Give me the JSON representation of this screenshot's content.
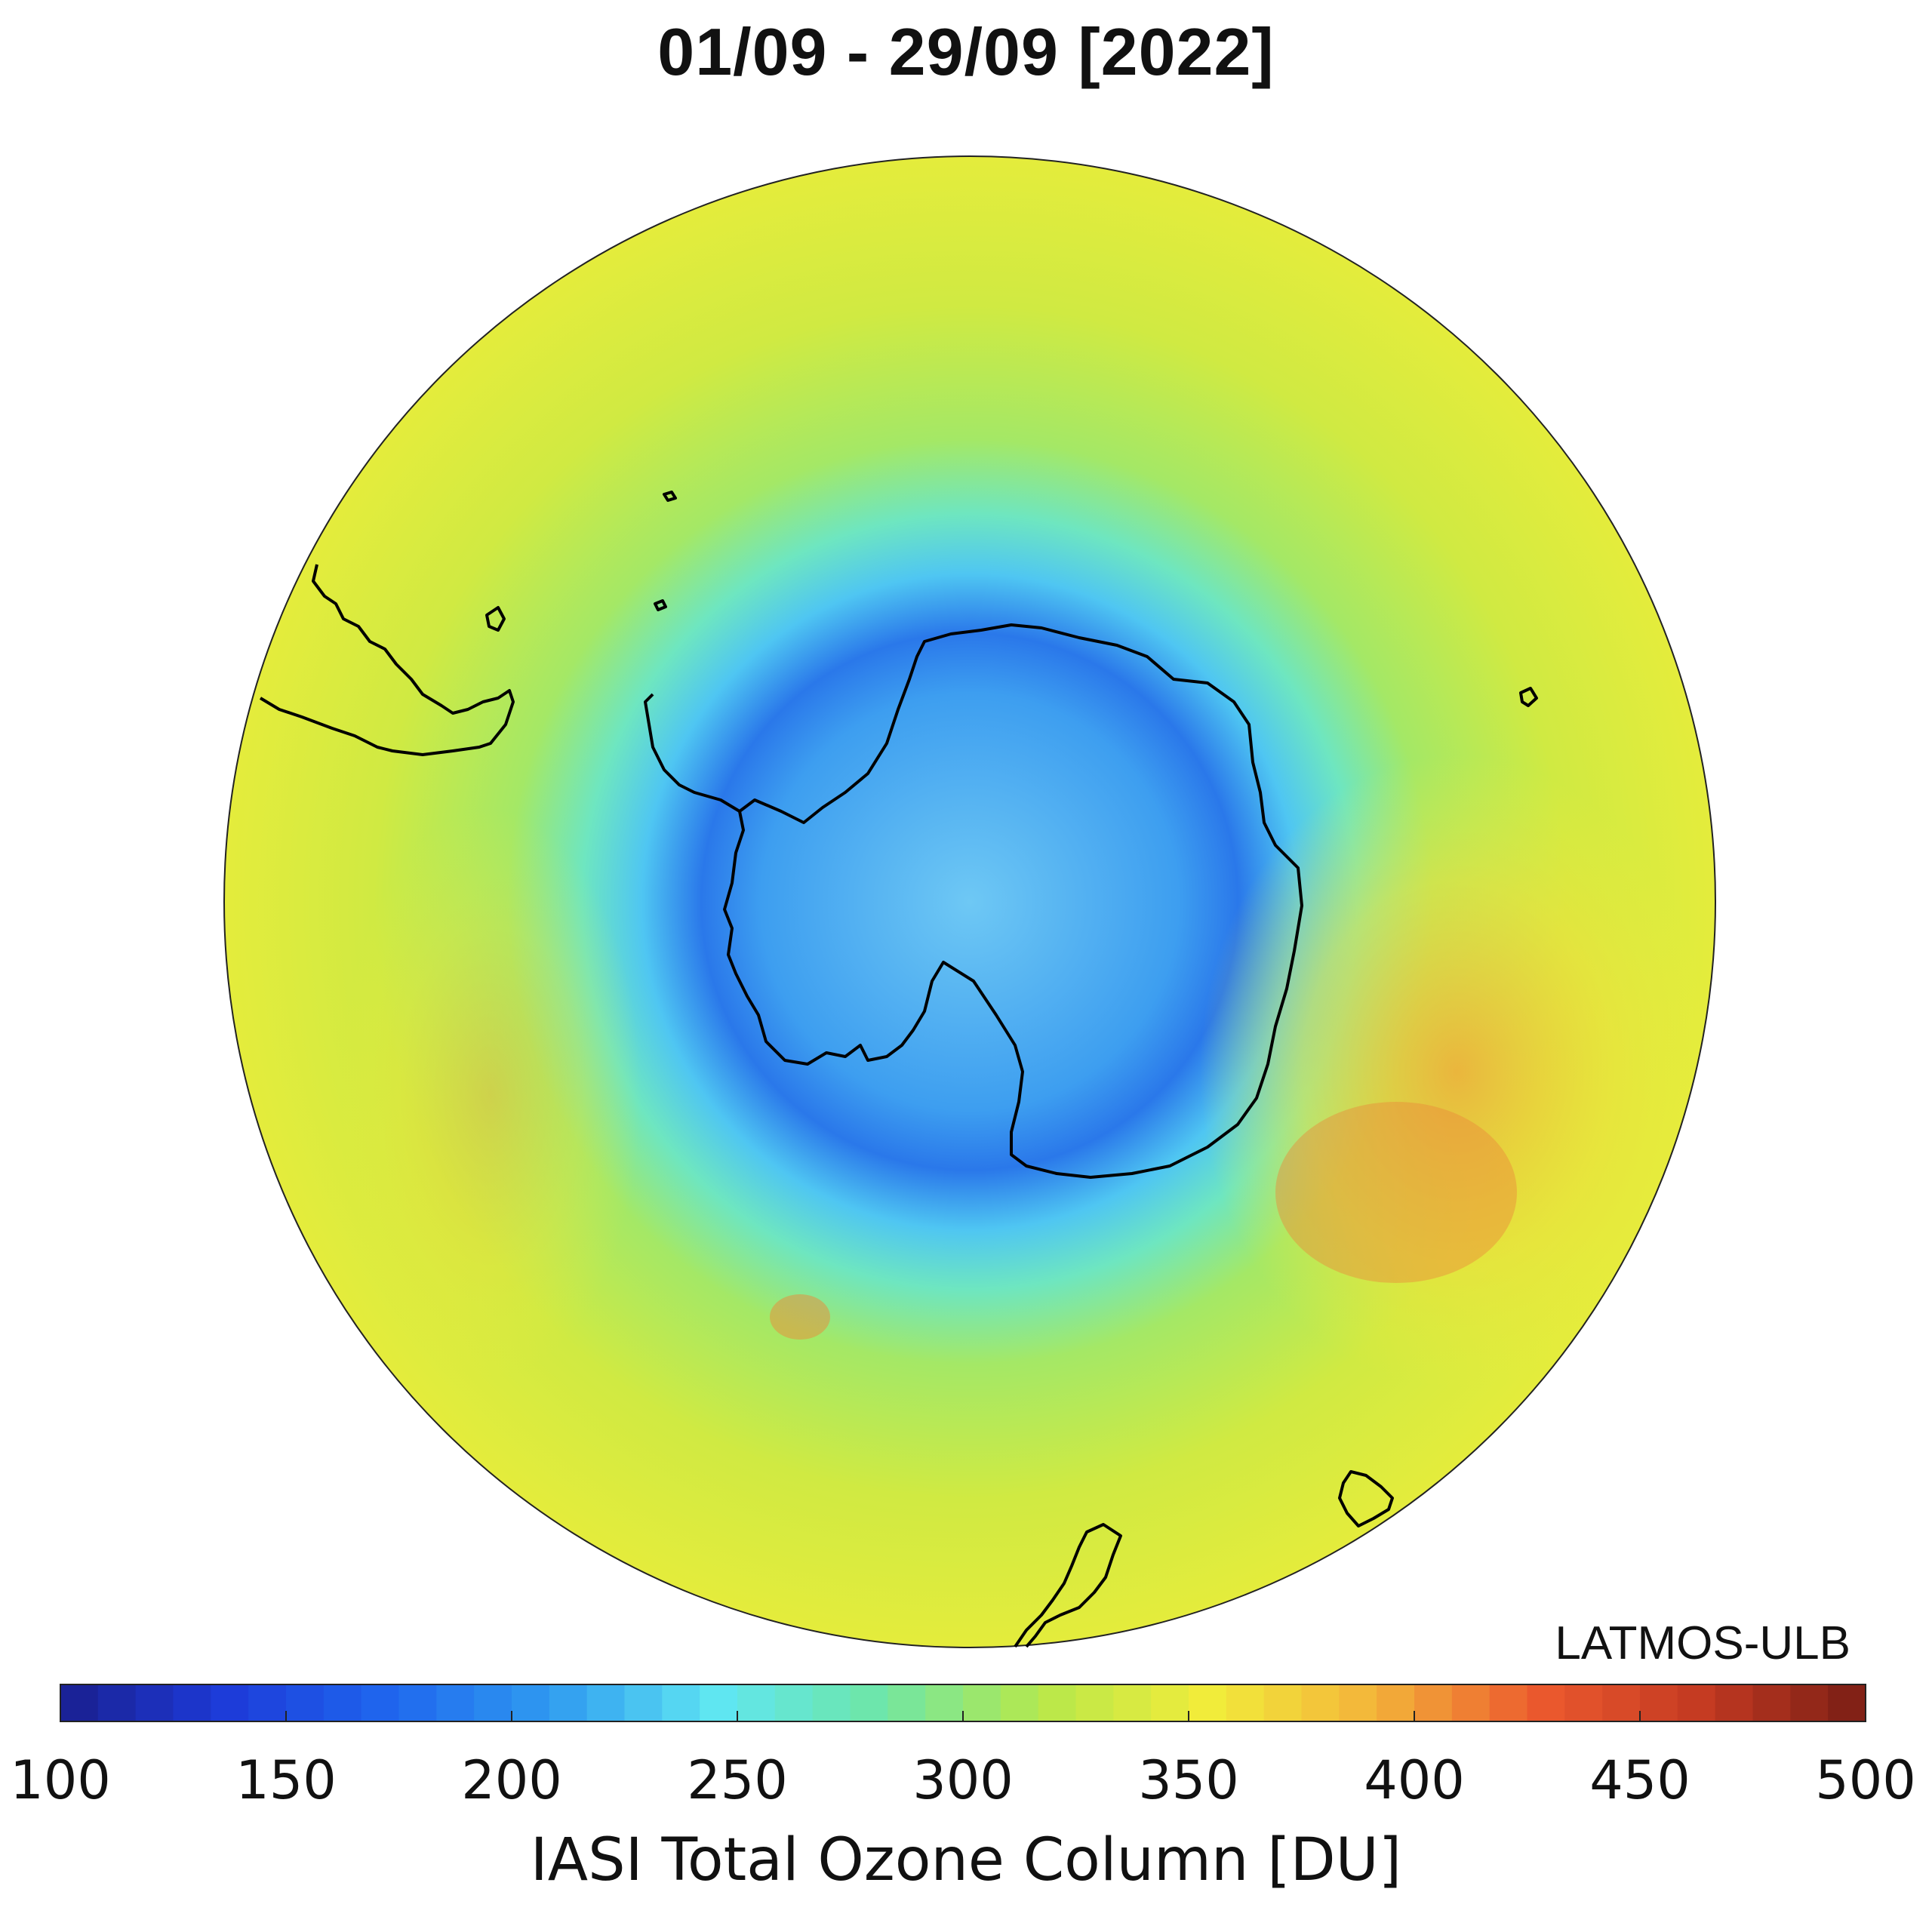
{
  "map": {
    "title": "01/09 - 29/09 [2022]",
    "credit": "LATMOS-ULB",
    "projection": "south polar stereographic",
    "fill_variable": "IASI total ozone column (colour-coded)"
  },
  "colorbar": {
    "label": "IASI Total Ozone Column [DU]",
    "min": 100,
    "max": 500,
    "ticks": [
      "100",
      "150",
      "200",
      "250",
      "300",
      "350",
      "400",
      "450",
      "500"
    ],
    "colors": [
      "#1a1f8f",
      "#1d3bd8",
      "#1f66ee",
      "#2f9bf0",
      "#5fe6f2",
      "#6ee6a6",
      "#b8e84a",
      "#f2ec3a",
      "#f3b43a",
      "#ec5a2e",
      "#c43a22",
      "#7a1e14"
    ]
  },
  "features": {
    "coastline_color": "#000000",
    "regions": [
      {
        "name": "ozone-hole-core",
        "value_du": 175
      },
      {
        "name": "ozone-hole-edge",
        "value_du": 240
      },
      {
        "name": "collar",
        "value_du": 310
      },
      {
        "name": "mid-latitude-maximum",
        "value_du": 360
      },
      {
        "name": "local-maximum",
        "value_du": 400
      }
    ]
  }
}
